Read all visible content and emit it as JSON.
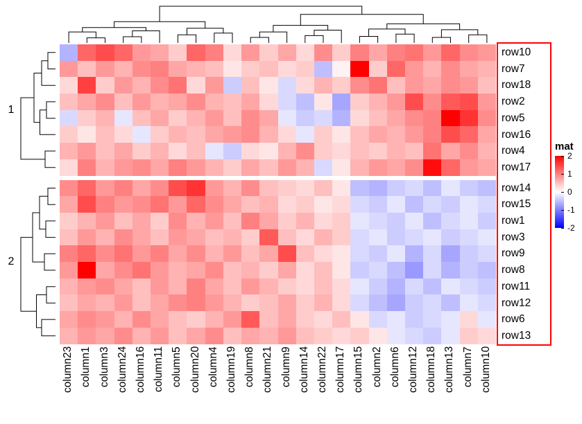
{
  "chart_data": {
    "type": "heatmap",
    "title": "",
    "legend": {
      "title": "mat",
      "ticks": [
        "2",
        "1",
        "0",
        "-1",
        "-2"
      ],
      "tick_values": [
        2,
        1,
        0,
        -1,
        -2
      ],
      "position": "right"
    },
    "colorscale": {
      "min": -2,
      "mid": 0,
      "max": 2,
      "min_color": "#0000ff",
      "mid_color": "#ffffff",
      "max_color": "#ff0000"
    },
    "annotations": {
      "row_label_box_color": "#ff0000"
    },
    "columns": [
      "column23",
      "column1",
      "column3",
      "column24",
      "column16",
      "column11",
      "column5",
      "column20",
      "column4",
      "column19",
      "column8",
      "column21",
      "column9",
      "column14",
      "column22",
      "column17",
      "column15",
      "column2",
      "column6",
      "column12",
      "column18",
      "column13",
      "column7",
      "column10"
    ],
    "rows": [
      "row10",
      "row7",
      "row18",
      "row2",
      "row5",
      "row16",
      "row4",
      "row17",
      "row14",
      "row15",
      "row1",
      "row3",
      "row9",
      "row8",
      "row11",
      "row12",
      "row6",
      "row13"
    ],
    "row_clusters": [
      {
        "label": "1",
        "rows": [
          "row10",
          "row7",
          "row18",
          "row2",
          "row5",
          "row16",
          "row4",
          "row17"
        ]
      },
      {
        "label": "2",
        "rows": [
          "row14",
          "row15",
          "row1",
          "row3",
          "row9",
          "row8",
          "row11",
          "row12",
          "row6",
          "row13"
        ]
      }
    ],
    "values": [
      [
        -0.6,
        1.2,
        1.4,
        1.2,
        0.8,
        0.7,
        0.4,
        1.2,
        1.0,
        0.3,
        0.8,
        0.4,
        0.7,
        0.3,
        0.9,
        0.4,
        1.0,
        0.7,
        1.0,
        1.1,
        0.8,
        1.2,
        0.9,
        0.8
      ],
      [
        0.8,
        0.5,
        0.8,
        0.6,
        0.9,
        1.0,
        0.7,
        0.6,
        0.5,
        0.2,
        0.4,
        0.5,
        0.3,
        0.4,
        -0.5,
        0.1,
        2.0,
        0.4,
        1.2,
        0.8,
        0.6,
        0.9,
        0.7,
        0.6
      ],
      [
        0.3,
        1.5,
        0.4,
        0.8,
        0.6,
        0.9,
        1.1,
        0.3,
        0.8,
        -0.4,
        0.5,
        0.2,
        -0.3,
        0.3,
        0.6,
        0.4,
        0.9,
        1.1,
        0.5,
        0.8,
        0.7,
        0.9,
        0.8,
        0.5
      ],
      [
        0.5,
        0.7,
        0.9,
        0.5,
        0.8,
        0.6,
        0.7,
        0.9,
        0.6,
        0.5,
        0.7,
        0.3,
        -0.3,
        -0.5,
        0.2,
        -0.7,
        0.4,
        0.6,
        0.8,
        1.4,
        0.9,
        1.3,
        1.4,
        0.8
      ],
      [
        -0.3,
        0.4,
        0.6,
        -0.2,
        0.5,
        0.7,
        0.4,
        0.6,
        0.8,
        0.5,
        0.9,
        0.7,
        -0.2,
        -0.4,
        -0.3,
        -0.6,
        0.3,
        0.5,
        0.7,
        0.9,
        1.0,
        2.0,
        1.6,
        0.9
      ],
      [
        0.4,
        0.2,
        0.5,
        0.3,
        -0.2,
        0.4,
        0.6,
        0.5,
        0.7,
        0.8,
        0.9,
        0.6,
        0.3,
        -0.2,
        0.4,
        0.2,
        0.5,
        0.7,
        0.6,
        0.8,
        1.0,
        1.4,
        1.2,
        0.7
      ],
      [
        0.6,
        0.8,
        0.5,
        0.7,
        0.4,
        0.6,
        0.3,
        0.5,
        -0.2,
        -0.4,
        0.3,
        0.2,
        0.6,
        0.9,
        0.4,
        0.3,
        0.5,
        0.4,
        0.6,
        0.5,
        1.1,
        0.7,
        0.9,
        0.6
      ],
      [
        0.3,
        1.0,
        0.6,
        0.8,
        0.9,
        0.7,
        1.0,
        0.8,
        0.6,
        0.4,
        0.7,
        0.5,
        0.8,
        0.6,
        -0.3,
        0.2,
        0.6,
        0.8,
        0.7,
        0.9,
        1.9,
        1.2,
        0.8,
        0.7
      ],
      [
        0.9,
        1.2,
        0.8,
        1.0,
        0.7,
        0.9,
        1.4,
        1.6,
        0.8,
        0.6,
        0.9,
        0.5,
        0.4,
        0.3,
        0.5,
        0.2,
        -0.5,
        -0.6,
        -0.4,
        -0.3,
        -0.5,
        -0.2,
        -0.4,
        -0.5
      ],
      [
        0.7,
        1.4,
        1.0,
        0.8,
        0.9,
        1.1,
        0.8,
        1.2,
        0.9,
        0.7,
        0.5,
        0.6,
        0.3,
        0.4,
        0.2,
        0.3,
        -0.3,
        -0.4,
        -0.2,
        -0.5,
        -0.3,
        -0.4,
        -0.2,
        -0.3
      ],
      [
        0.4,
        0.6,
        0.8,
        0.5,
        0.7,
        0.4,
        0.9,
        0.6,
        0.8,
        0.5,
        1.0,
        0.7,
        0.4,
        0.6,
        0.3,
        0.4,
        -0.2,
        -0.3,
        -0.4,
        -0.2,
        -0.5,
        -0.3,
        -0.2,
        -0.4
      ],
      [
        0.5,
        0.8,
        0.6,
        0.9,
        0.7,
        0.5,
        0.8,
        0.7,
        0.5,
        0.6,
        0.4,
        1.3,
        0.5,
        0.3,
        0.6,
        0.4,
        -0.3,
        -0.2,
        -0.4,
        -0.3,
        -0.2,
        -0.4,
        -0.3,
        -0.2
      ],
      [
        1.0,
        1.2,
        0.9,
        1.1,
        0.8,
        1.0,
        0.7,
        0.9,
        0.6,
        0.8,
        0.5,
        0.7,
        1.4,
        0.5,
        0.3,
        0.2,
        -0.3,
        -0.4,
        -0.2,
        -0.6,
        -0.3,
        -0.7,
        -0.4,
        -0.3
      ],
      [
        0.8,
        2.0,
        0.7,
        0.9,
        1.1,
        0.8,
        0.6,
        0.7,
        0.9,
        0.5,
        0.6,
        0.4,
        0.7,
        0.3,
        0.5,
        0.2,
        -0.4,
        -0.3,
        -0.5,
        -0.8,
        -0.3,
        -0.6,
        -0.4,
        -0.5
      ],
      [
        0.6,
        0.8,
        0.9,
        0.7,
        0.5,
        0.8,
        0.6,
        1.0,
        0.7,
        0.5,
        0.8,
        0.6,
        0.4,
        0.3,
        0.5,
        0.3,
        -0.2,
        -0.4,
        -0.6,
        -0.3,
        -0.5,
        -0.2,
        -0.3,
        -0.4
      ],
      [
        0.5,
        0.7,
        0.6,
        0.8,
        0.5,
        0.7,
        0.9,
        1.0,
        0.8,
        0.6,
        0.4,
        0.5,
        0.7,
        0.4,
        0.6,
        0.3,
        -0.3,
        -0.5,
        -0.7,
        -0.4,
        -0.3,
        -0.5,
        -0.2,
        -0.3
      ],
      [
        0.7,
        0.9,
        0.8,
        0.6,
        0.9,
        0.7,
        0.5,
        0.4,
        0.6,
        0.8,
        1.3,
        0.5,
        0.7,
        0.4,
        0.3,
        0.5,
        0.2,
        -0.3,
        -0.2,
        -0.4,
        -0.3,
        -0.2,
        0.3,
        -0.2
      ],
      [
        0.6,
        0.8,
        0.7,
        0.9,
        0.6,
        0.8,
        0.5,
        0.7,
        0.9,
        0.5,
        0.7,
        0.6,
        0.8,
        0.5,
        0.4,
        0.3,
        0.4,
        0.2,
        -0.2,
        -0.3,
        -0.4,
        -0.2,
        0.4,
        0.3
      ]
    ],
    "column_dendrogram": {
      "h": 1.0,
      "c": [
        {
          "h": 0.58,
          "c": [
            {
              "h": 0.42,
              "c": [
                {
                  "h": 0.3,
                  "c": [
                    0,
                    {
                      "h": 0.14,
                      "c": [
                        1,
                        2
                      ]
                    }
                  ]
                },
                {
                  "h": 0.33,
                  "c": [
                    {
                      "h": 0.17,
                      "c": [
                        3,
                        4
                      ]
                    },
                    5
                  ]
                }
              ]
            },
            {
              "h": 0.4,
              "c": [
                {
                  "h": 0.22,
                  "c": [
                    6,
                    7
                  ]
                },
                {
                  "h": 0.27,
                  "c": [
                    8,
                    9
                  ]
                }
              ]
            }
          ]
        },
        {
          "h": 0.78,
          "c": [
            {
              "h": 0.48,
              "c": [
                {
                  "h": 0.3,
                  "c": [
                    {
                      "h": 0.15,
                      "c": [
                        10,
                        11
                      ]
                    },
                    12
                  ]
                },
                {
                  "h": 0.35,
                  "c": [
                    {
                      "h": 0.2,
                      "c": [
                        13,
                        14
                      ]
                    },
                    15
                  ]
                }
              ]
            },
            {
              "h": 0.52,
              "c": [
                {
                  "h": 0.38,
                  "c": [
                    {
                      "h": 0.18,
                      "c": [
                        16,
                        17
                      ]
                    },
                    {
                      "h": 0.24,
                      "c": [
                        18,
                        19
                      ]
                    }
                  ]
                },
                {
                  "h": 0.36,
                  "c": [
                    {
                      "h": 0.15,
                      "c": [
                        20,
                        21
                      ]
                    },
                    {
                      "h": 0.22,
                      "c": [
                        22,
                        23
                      ]
                    }
                  ]
                }
              ]
            }
          ]
        }
      ]
    },
    "row_dendrograms": [
      {
        "h": 1.0,
        "c": [
          {
            "h": 0.62,
            "c": [
              {
                "h": 0.4,
                "c": [
                  {
                    "h": 0.22,
                    "c": [
                      0,
                      1
                    ]
                  },
                  2
                ]
              },
              {
                "h": 0.45,
                "c": [
                  {
                    "h": 0.26,
                    "c": [
                      3,
                      4
                    ]
                  },
                  5
                ]
              }
            ]
          },
          {
            "h": 0.3,
            "c": [
              6,
              7
            ]
          }
        ]
      },
      {
        "h": 1.0,
        "c": [
          {
            "h": 0.66,
            "c": [
              {
                "h": 0.46,
                "c": [
                  {
                    "h": 0.22,
                    "c": [
                      8,
                      9
                    ]
                  },
                  {
                    "h": 0.28,
                    "c": [
                      10,
                      11
                    ]
                  }
                ]
              },
              {
                "h": 0.32,
                "c": [
                  12,
                  13
                ]
              }
            ]
          },
          {
            "h": 0.55,
            "c": [
              {
                "h": 0.26,
                "c": [
                  14,
                  15
                ]
              },
              {
                "h": 0.4,
                "c": [
                  16,
                  17
                ]
              }
            ]
          }
        ]
      }
    ]
  }
}
